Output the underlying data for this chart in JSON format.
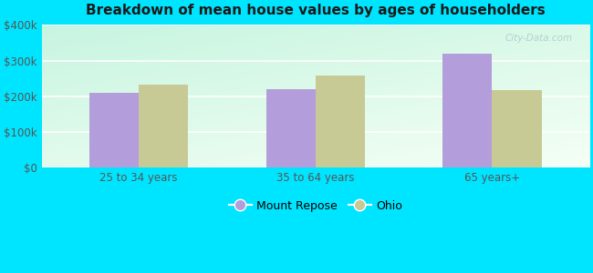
{
  "title": "Breakdown of mean house values by ages of householders",
  "categories": [
    "25 to 34 years",
    "35 to 64 years",
    "65 years+"
  ],
  "mount_repose": [
    210000,
    220000,
    318000
  ],
  "ohio": [
    232000,
    258000,
    218000
  ],
  "color_mount_repose": "#b39ddb",
  "color_ohio": "#c8ca96",
  "ylim": [
    0,
    400000
  ],
  "yticks": [
    0,
    100000,
    200000,
    300000,
    400000
  ],
  "ytick_labels": [
    "$0",
    "$100k",
    "$200k",
    "$300k",
    "$400k"
  ],
  "legend_labels": [
    "Mount Repose",
    "Ohio"
  ],
  "background_outer": "#00e5ff",
  "bar_width": 0.28,
  "title_fontsize": 11,
  "tick_fontsize": 8.5,
  "legend_fontsize": 9
}
